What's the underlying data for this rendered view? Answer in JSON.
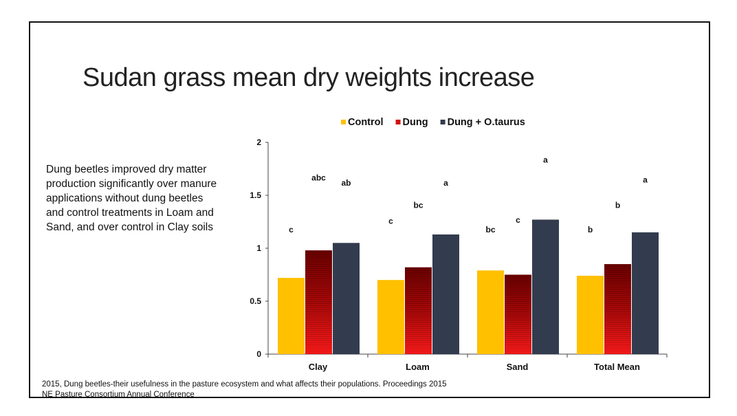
{
  "slide": {
    "title": "Sudan grass mean dry weights increase",
    "body": "Dung beetles improved dry matter production significantly over manure applications without dung beetles and control treatments in Loam and Sand, and over control in Clay soils",
    "citation_line1": "2015,  Dung beetles-their usefulness in the pasture ecosystem and what affects their populations. Proceedings 2015",
    "citation_line2": "NE Pasture Consortium Annual Conference"
  },
  "chart_data": {
    "type": "bar",
    "title": "",
    "xlabel": "",
    "ylabel": "",
    "categories": [
      "Clay",
      "Loam",
      "Sand",
      "Total Mean"
    ],
    "ylim": [
      0,
      2
    ],
    "yticks": [
      "0",
      "0.5",
      "1",
      "1.5",
      "2"
    ],
    "grid": false,
    "legend_position": "top",
    "series": [
      {
        "name": "Control",
        "color": "#FFC000",
        "values": [
          0.72,
          0.7,
          0.79,
          0.74
        ],
        "letters": [
          "c",
          "c",
          "bc",
          "b"
        ],
        "letter_heights": [
          1.15,
          1.23,
          1.15,
          1.15
        ]
      },
      {
        "name": "Dung",
        "color": "#D01010",
        "values": [
          0.98,
          0.82,
          0.75,
          0.85
        ],
        "letters": [
          "abc",
          "bc",
          "c",
          "b"
        ],
        "letter_heights": [
          1.64,
          1.38,
          1.24,
          1.38
        ]
      },
      {
        "name": "Dung + O.taurus",
        "color": "#333C4E",
        "values": [
          1.05,
          1.13,
          1.27,
          1.15
        ],
        "letters": [
          "ab",
          "a",
          "a",
          "a"
        ],
        "letter_heights": [
          1.59,
          1.59,
          1.81,
          1.62
        ]
      }
    ]
  }
}
